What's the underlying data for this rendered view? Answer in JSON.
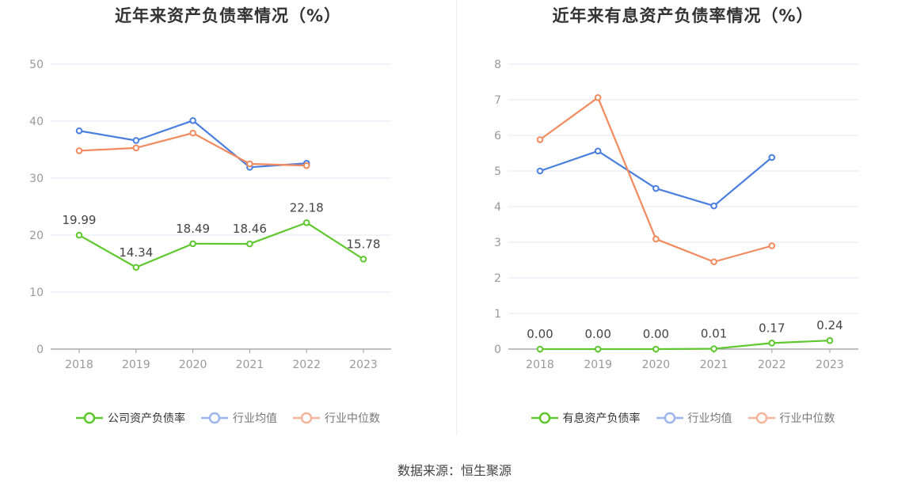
{
  "chart_data": [
    {
      "type": "line",
      "title": "近年来资产负债率情况（%）",
      "categories": [
        "2018",
        "2019",
        "2020",
        "2021",
        "2022",
        "2023"
      ],
      "ylim": [
        0,
        50
      ],
      "yticks": [
        0,
        10,
        20,
        30,
        40,
        50
      ],
      "grid": true,
      "legend_position": "bottom",
      "series": [
        {
          "name": "公司资产负债率",
          "color": "#5ec82e",
          "values": [
            19.99,
            14.34,
            18.49,
            18.46,
            22.18,
            15.78
          ],
          "value_labels": [
            "19.99",
            "14.34",
            "18.49",
            "18.46",
            "22.18",
            "15.78"
          ]
        },
        {
          "name": "行业均值",
          "color": "#4a7fe0",
          "values": [
            38.3,
            36.6,
            40.1,
            31.9,
            32.6,
            null
          ]
        },
        {
          "name": "行业中位数",
          "color": "#f28a5e",
          "values": [
            34.8,
            35.3,
            37.9,
            32.5,
            32.2,
            null
          ]
        }
      ]
    },
    {
      "type": "line",
      "title": "近年来有息资产负债率情况（%）",
      "categories": [
        "2018",
        "2019",
        "2020",
        "2021",
        "2022",
        "2023"
      ],
      "ylim": [
        0,
        8
      ],
      "yticks": [
        0,
        1,
        2,
        3,
        4,
        5,
        6,
        7,
        8
      ],
      "grid": true,
      "legend_position": "bottom",
      "series": [
        {
          "name": "有息资产负债率",
          "color": "#5ec82e",
          "values": [
            0.0,
            0.0,
            0.0,
            0.01,
            0.17,
            0.24
          ],
          "value_labels": [
            "0.00",
            "0.00",
            "0.00",
            "0.01",
            "0.17",
            "0.24"
          ]
        },
        {
          "name": "行业均值",
          "color": "#4a7fe0",
          "values": [
            5.0,
            5.56,
            4.51,
            4.02,
            5.38,
            null
          ]
        },
        {
          "name": "行业中位数",
          "color": "#f28a5e",
          "values": [
            5.88,
            7.06,
            3.09,
            2.45,
            2.9,
            null
          ]
        }
      ]
    }
  ],
  "footer": {
    "source": "数据来源：恒生聚源"
  }
}
